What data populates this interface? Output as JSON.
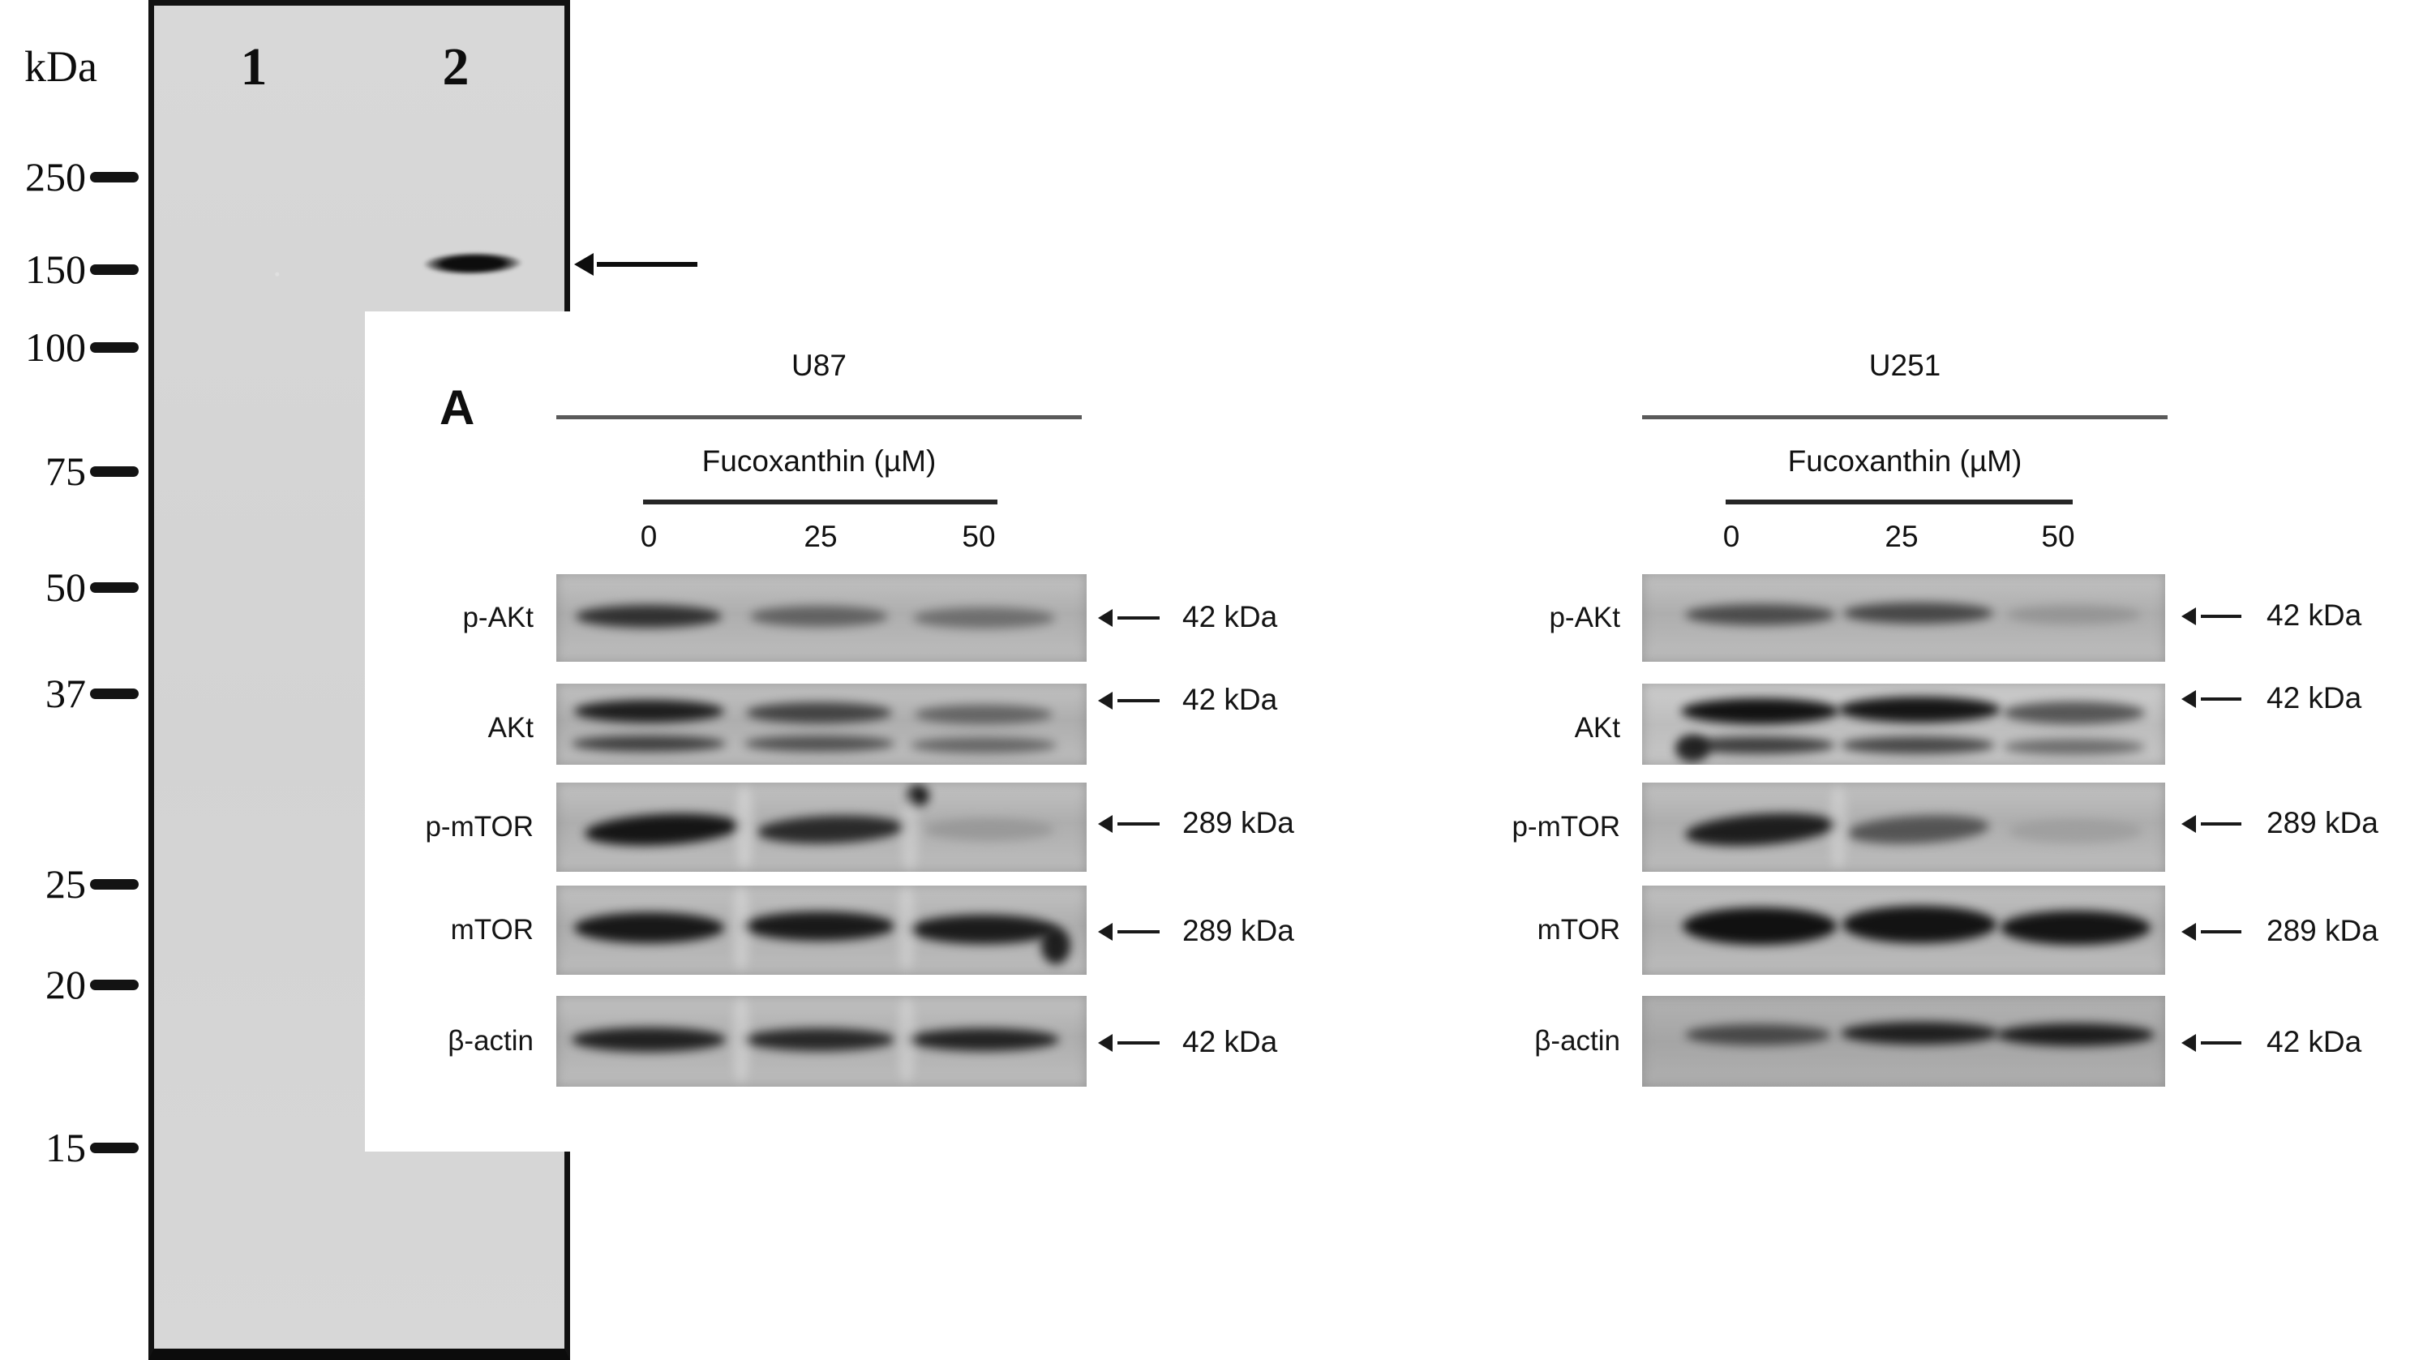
{
  "ladder": {
    "unit": "kDa",
    "lane_labels": [
      "1",
      "2"
    ],
    "markers": [
      "250",
      "150",
      "100",
      "75",
      "50",
      "37",
      "25",
      "20",
      "15"
    ]
  },
  "panel_label": "A",
  "panels": [
    {
      "cell_line": "U87",
      "treatment": "Fucoxanthin (µM)",
      "doses": [
        "0",
        "25",
        "50"
      ],
      "rows": [
        {
          "protein": "p-AKt",
          "weight": "42 kDa"
        },
        {
          "protein": "AKt",
          "weight": "42 kDa"
        },
        {
          "protein": "p-mTOR",
          "weight": "289 kDa"
        },
        {
          "protein": "mTOR",
          "weight": "289 kDa"
        },
        {
          "protein": "β-actin",
          "weight": "42 kDa"
        }
      ]
    },
    {
      "cell_line": "U251",
      "treatment": "Fucoxanthin (µM)",
      "doses": [
        "0",
        "25",
        "50"
      ],
      "rows": [
        {
          "protein": "p-AKt",
          "weight": "42 kDa"
        },
        {
          "protein": "AKt",
          "weight": "42 kDa"
        },
        {
          "protein": "p-mTOR",
          "weight": "289 kDa"
        },
        {
          "protein": "mTOR",
          "weight": "289 kDa"
        },
        {
          "protein": "β-actin",
          "weight": "42 kDa"
        }
      ]
    }
  ]
}
